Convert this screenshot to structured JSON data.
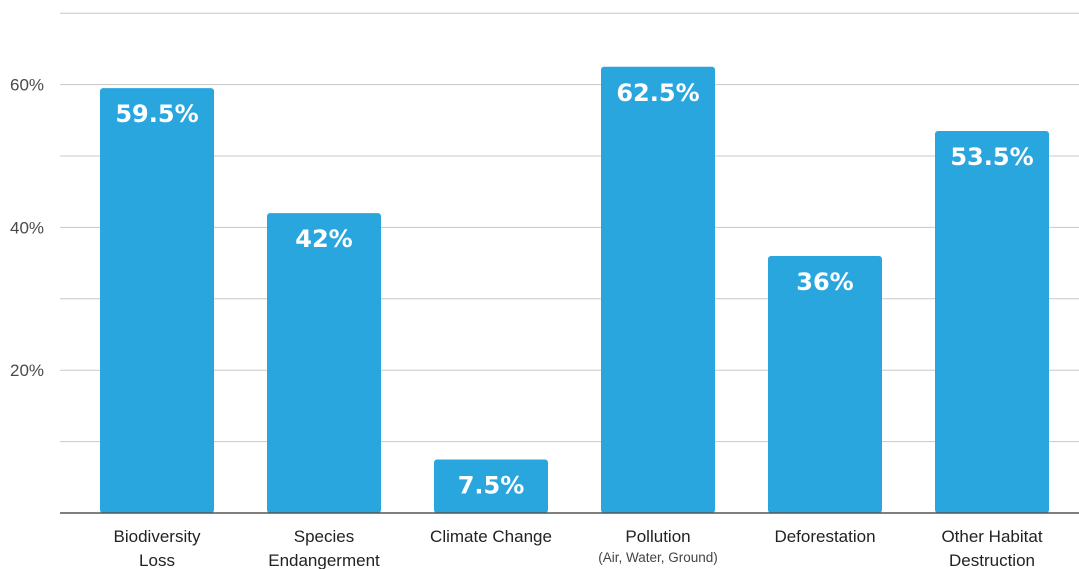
{
  "chart_data": {
    "type": "bar",
    "categories": [
      {
        "lines": [
          "Biodiversity",
          "Loss"
        ],
        "sub": ""
      },
      {
        "lines": [
          "Species",
          "Endangerment"
        ],
        "sub": ""
      },
      {
        "lines": [
          "Climate Change"
        ],
        "sub": ""
      },
      {
        "lines": [
          "Pollution"
        ],
        "sub": "(Air, Water, Ground)"
      },
      {
        "lines": [
          "Deforestation"
        ],
        "sub": ""
      },
      {
        "lines": [
          "Other Habitat",
          "Destruction"
        ],
        "sub": ""
      }
    ],
    "values": [
      59.5,
      42,
      7.5,
      62.5,
      36,
      53.5
    ],
    "value_labels": [
      "59.5%",
      "42%",
      "7.5%",
      "62.5%",
      "36%",
      "53.5%"
    ],
    "ylim": [
      0,
      70
    ],
    "yticks": [
      20,
      40,
      60
    ],
    "ytick_labels": [
      "20%",
      "40%",
      "60%"
    ],
    "gridlines": [
      10,
      20,
      30,
      40,
      50,
      60,
      70
    ],
    "grid": true,
    "title": "",
    "xlabel": "",
    "ylabel": "",
    "colors": {
      "bar": "#2aa6df",
      "grid": "#c8c8c8",
      "axis": "#555555"
    }
  }
}
